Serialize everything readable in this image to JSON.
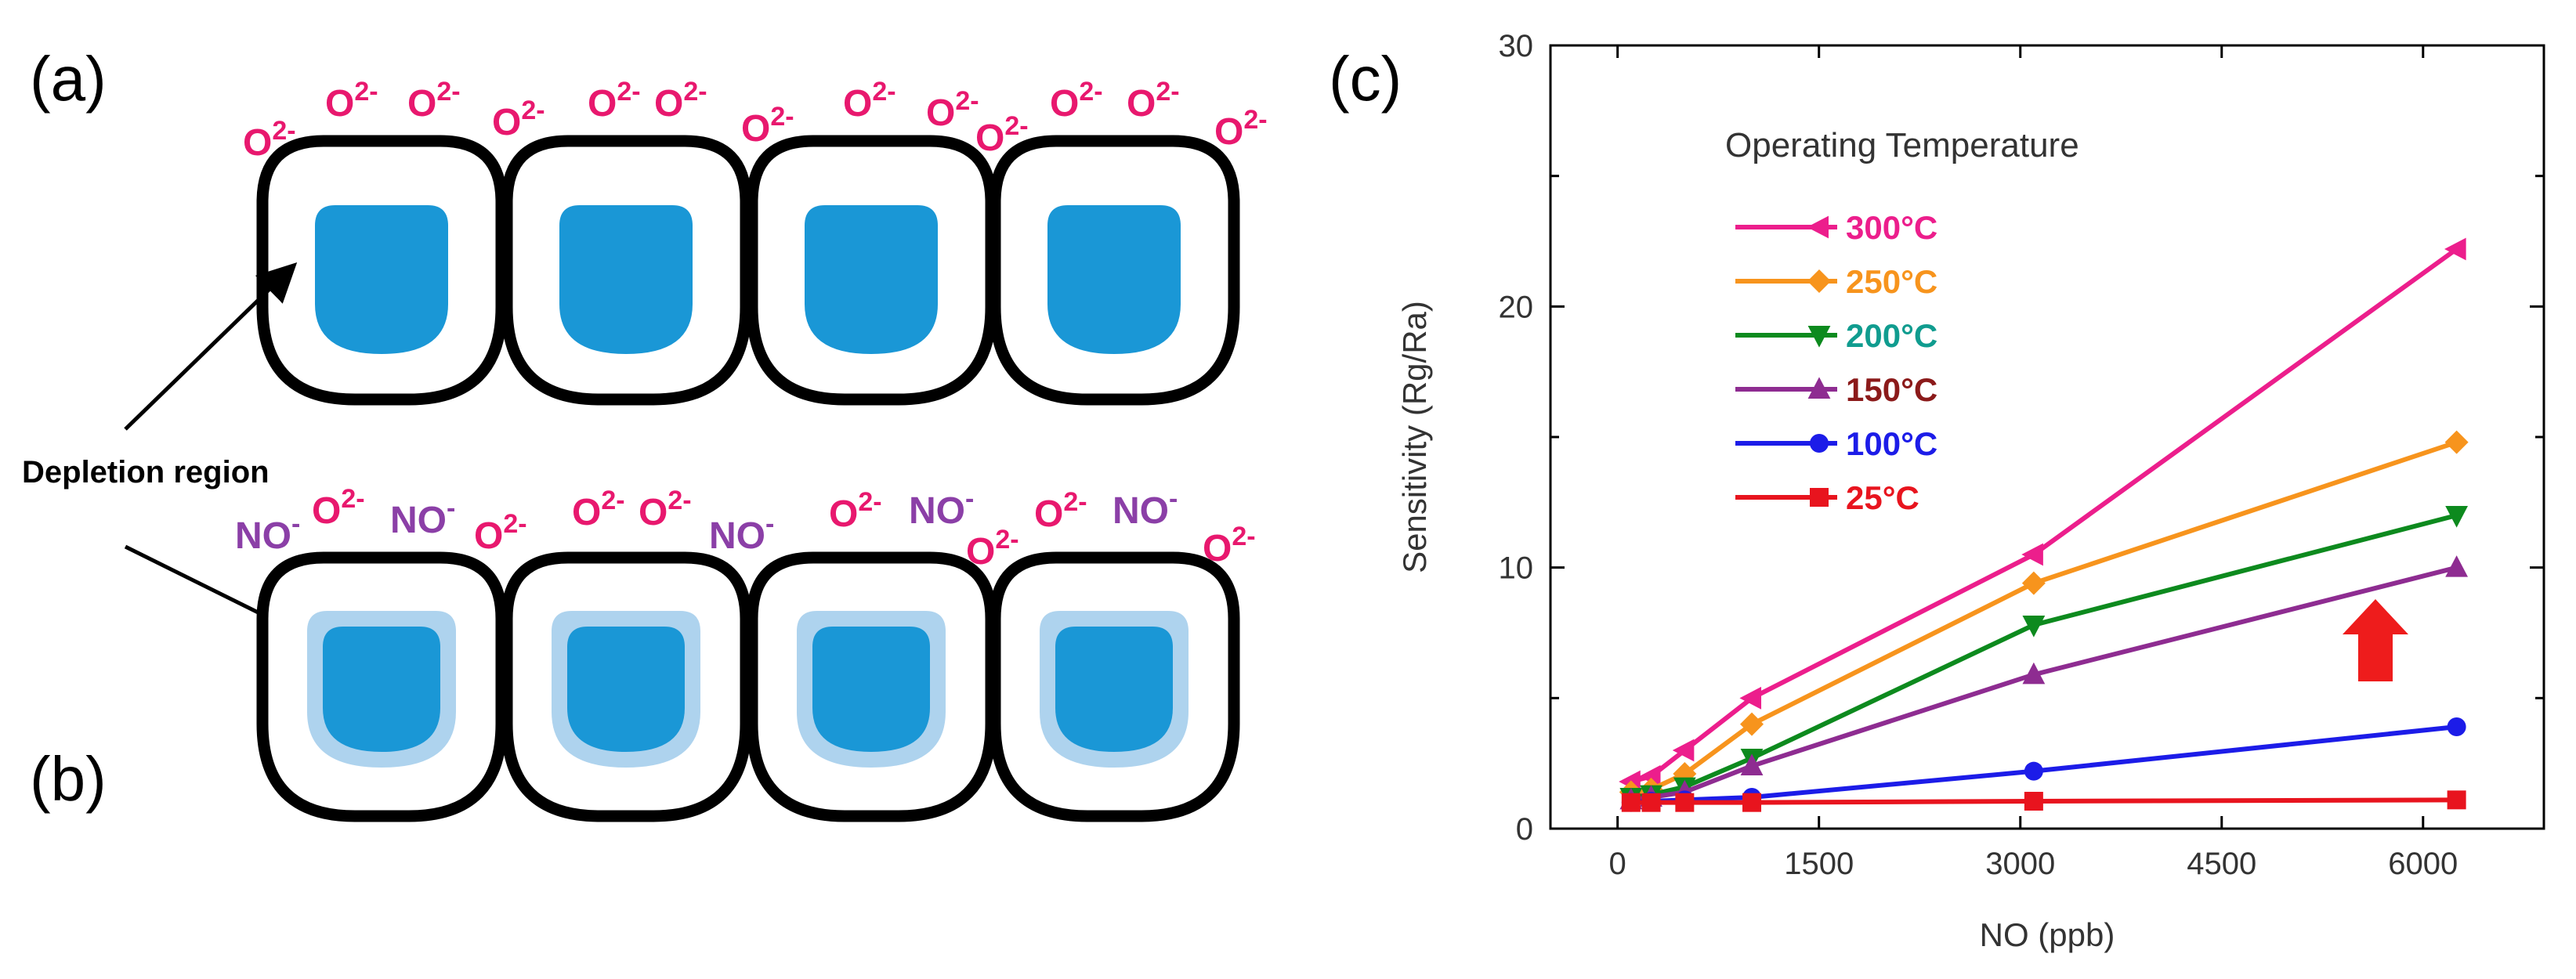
{
  "panels": {
    "a": {
      "label": "(a)"
    },
    "b": {
      "label": "(b)"
    },
    "c": {
      "label": "(c)"
    }
  },
  "schematic": {
    "depletion_label": "Depletion region",
    "o2_base": "O",
    "o2_charge": "2-",
    "no_base": "NO",
    "no_charge": "-",
    "colors": {
      "outline": "#000000",
      "core": "#1A97D6",
      "depletion": "#AED3EE",
      "o2": "#E8186E",
      "no": "#8B3FA7"
    }
  },
  "chart_data": {
    "type": "line",
    "title": "",
    "xlabel": "NO (ppb)",
    "ylabel": "Sensitivity (Rg/Ra)",
    "xlim": [
      -500,
      6900
    ],
    "ylim": [
      0,
      30
    ],
    "xticks": [
      0,
      1500,
      3000,
      4500,
      6000
    ],
    "xtick_labels": [
      "0",
      "1500",
      "3000",
      "4500",
      "6000"
    ],
    "yticks": [
      0,
      10,
      20,
      30
    ],
    "ytick_labels": [
      "0",
      "10",
      "20",
      "30"
    ],
    "legend_title": "Operating Temperature",
    "legend_position": "upper-left",
    "x": [
      100,
      250,
      500,
      1000,
      3100,
      6250
    ],
    "series": [
      {
        "name": "300°C",
        "color": "#EC1E8C",
        "marker": "triangle-left",
        "values": [
          1.8,
          2.0,
          3.0,
          5.0,
          10.5,
          22.2
        ]
      },
      {
        "name": "250°C",
        "color": "#F7941D",
        "marker": "diamond",
        "values": [
          1.4,
          1.5,
          2.1,
          4.0,
          9.4,
          14.8
        ]
      },
      {
        "name": "200°C",
        "color": "#0D8A1E",
        "marker": "triangle-down",
        "values": [
          1.2,
          1.3,
          1.6,
          2.7,
          7.8,
          12.0
        ]
      },
      {
        "name": "150°C",
        "color": "#8E2C91",
        "marker": "triangle-up",
        "values": [
          1.1,
          1.2,
          1.4,
          2.4,
          5.9,
          10.0
        ]
      },
      {
        "name": "100°C",
        "color": "#1C1CE8",
        "marker": "circle",
        "values": [
          1.0,
          1.05,
          1.1,
          1.2,
          2.2,
          3.9
        ]
      },
      {
        "name": "25°C",
        "color": "#E8141E",
        "marker": "square",
        "values": [
          1.0,
          1.0,
          1.0,
          1.0,
          1.05,
          1.1
        ]
      }
    ],
    "legend_text_colors": [
      "#EC1E8C",
      "#F7941D",
      "#109C8F",
      "#8B1A1A",
      "#1C1CE8",
      "#E8141E"
    ],
    "arrow_color": "#EE1C1C"
  }
}
